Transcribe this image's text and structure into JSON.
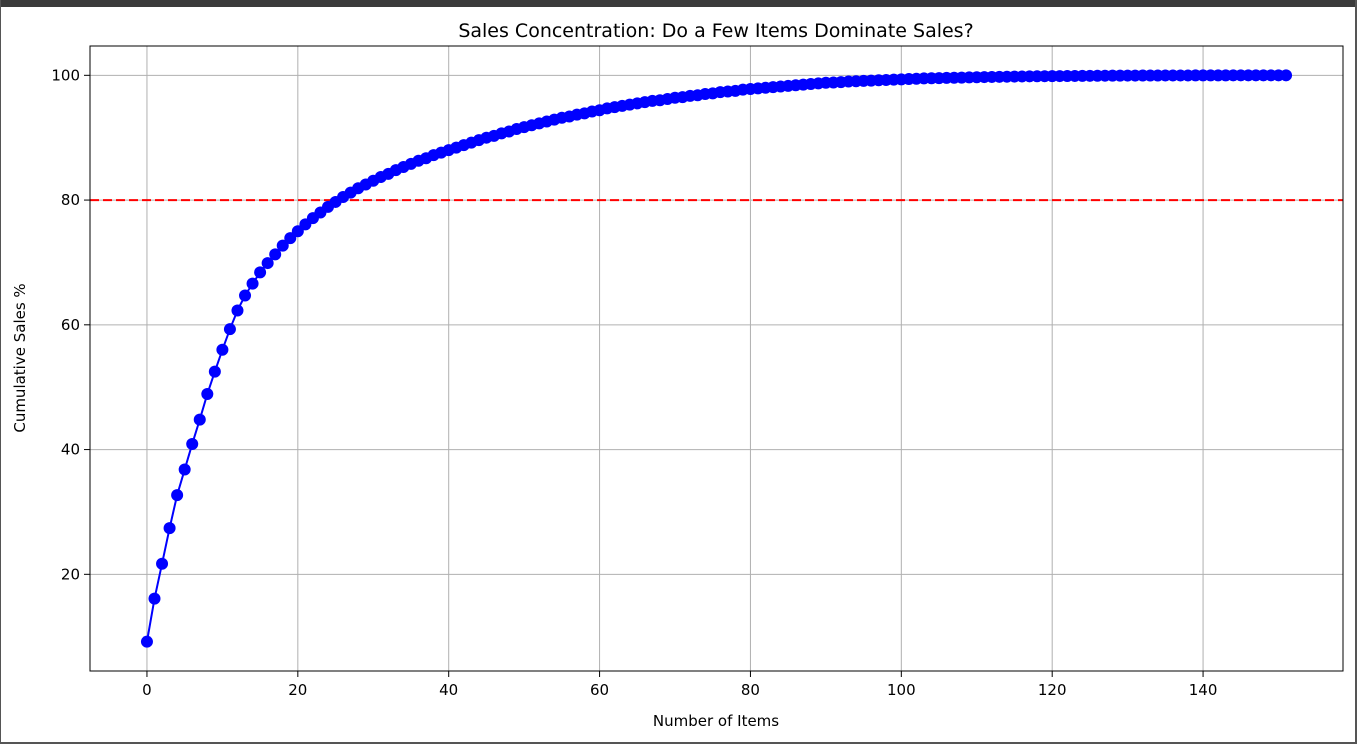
{
  "chart_data": {
    "type": "line",
    "title": "Sales Concentration: Do a Few Items Dominate Sales?",
    "xlabel": "Number of Items",
    "ylabel": "Cumulative Sales %",
    "xlim": [
      -7.55,
      158.55
    ],
    "ylim": [
      4.5,
      104.7
    ],
    "xticks": [
      0,
      20,
      40,
      60,
      80,
      100,
      120,
      140
    ],
    "yticks": [
      20,
      40,
      60,
      80,
      100
    ],
    "grid": true,
    "series": [
      {
        "marker": "circle",
        "color": "#0000ff",
        "x": [
          0,
          1,
          2,
          3,
          4,
          5,
          6,
          7,
          8,
          9,
          10,
          11,
          12,
          13,
          14,
          15,
          16,
          17,
          18,
          19,
          20,
          21,
          22,
          23,
          24,
          25,
          26,
          27,
          28,
          29,
          30,
          31,
          32,
          33,
          34,
          35,
          36,
          37,
          38,
          39,
          40,
          41,
          42,
          43,
          44,
          45,
          46,
          47,
          48,
          49,
          50,
          51,
          52,
          53,
          54,
          55,
          56,
          57,
          58,
          59,
          60,
          61,
          62,
          63,
          64,
          65,
          66,
          67,
          68,
          69,
          70,
          71,
          72,
          73,
          74,
          75,
          76,
          77,
          78,
          79,
          80,
          81,
          82,
          83,
          84,
          85,
          86,
          87,
          88,
          89,
          90,
          91,
          92,
          93,
          94,
          95,
          96,
          97,
          98,
          99,
          100,
          101,
          102,
          103,
          104,
          105,
          106,
          107,
          108,
          109,
          110,
          111,
          112,
          113,
          114,
          115,
          116,
          117,
          118,
          119,
          120,
          121,
          122,
          123,
          124,
          125,
          126,
          127,
          128,
          129,
          130,
          131,
          132,
          133,
          134,
          135,
          136,
          137,
          138,
          139,
          140,
          141,
          142,
          143,
          144,
          145,
          146,
          147,
          148,
          149,
          150,
          151
        ],
        "y": [
          9.2,
          16.1,
          21.7,
          27.4,
          32.7,
          36.8,
          40.9,
          44.8,
          48.9,
          52.5,
          56.0,
          59.3,
          62.3,
          64.7,
          66.6,
          68.4,
          69.9,
          71.3,
          72.7,
          73.9,
          75.0,
          76.1,
          77.1,
          78.0,
          78.9,
          79.7,
          80.5,
          81.2,
          81.9,
          82.5,
          83.1,
          83.7,
          84.2,
          84.8,
          85.3,
          85.8,
          86.3,
          86.7,
          87.2,
          87.6,
          88.0,
          88.4,
          88.8,
          89.2,
          89.6,
          90.0,
          90.3,
          90.7,
          91.0,
          91.4,
          91.7,
          92.0,
          92.3,
          92.6,
          92.9,
          93.2,
          93.4,
          93.7,
          93.9,
          94.2,
          94.4,
          94.7,
          94.9,
          95.1,
          95.3,
          95.5,
          95.7,
          95.9,
          96.0,
          96.2,
          96.4,
          96.5,
          96.7,
          96.8,
          97.0,
          97.1,
          97.3,
          97.4,
          97.5,
          97.7,
          97.8,
          97.9,
          98.0,
          98.1,
          98.2,
          98.3,
          98.4,
          98.5,
          98.6,
          98.7,
          98.8,
          98.85,
          98.9,
          99.0,
          99.05,
          99.1,
          99.15,
          99.2,
          99.25,
          99.3,
          99.35,
          99.4,
          99.45,
          99.5,
          99.52,
          99.55,
          99.58,
          99.6,
          99.63,
          99.66,
          99.69,
          99.72,
          99.74,
          99.76,
          99.78,
          99.8,
          99.82,
          99.84,
          99.85,
          99.86,
          99.87,
          99.88,
          99.89,
          99.9,
          99.91,
          99.92,
          99.93,
          99.94,
          99.95,
          99.95,
          99.96,
          99.96,
          99.97,
          99.97,
          99.97,
          99.98,
          99.98,
          99.98,
          99.98,
          99.99,
          99.99,
          99.99,
          99.99,
          99.99,
          100,
          100,
          100,
          100,
          100,
          100,
          100,
          100
        ]
      }
    ],
    "reference_line": {
      "y": 80,
      "color": "#ff0000",
      "style": "dashed"
    }
  }
}
